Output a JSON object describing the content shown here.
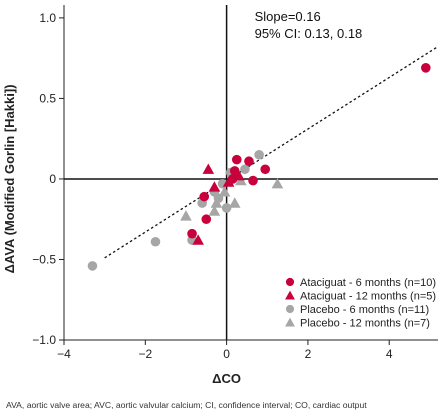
{
  "chart_data": {
    "type": "scatter",
    "xlabel": "ΔCO",
    "ylabel": "ΔAVA (Modified Gorlin [Hakki])",
    "xlim": [
      -4,
      5.2
    ],
    "ylim": [
      -1.0,
      1.08
    ],
    "xticks": [
      -4,
      -2,
      0,
      2,
      4
    ],
    "yticks": [
      -1.0,
      -0.5,
      0,
      0.5,
      1.0
    ],
    "xtick_labels": [
      "−4",
      "−2",
      "0",
      "2",
      "4"
    ],
    "ytick_labels": [
      "−1.0",
      "−0.5",
      "0",
      "0.5",
      "1.0"
    ],
    "grid": false,
    "legend_position": "bottom-right",
    "annotations": [
      "Slope=0.16",
      "95% CI: 0.13, 0.18"
    ],
    "regression_line": {
      "style": "dotted",
      "slope": 0.16,
      "intercept": -0.01,
      "x_range": [
        -3.0,
        5.2
      ]
    },
    "series": [
      {
        "name": "Ataciguat - 6 months (n=10)",
        "marker": "circle",
        "color": "#c8003c",
        "points": [
          {
            "x": 4.9,
            "y": 0.69
          },
          {
            "x": 0.25,
            "y": 0.12
          },
          {
            "x": 0.55,
            "y": 0.11
          },
          {
            "x": 0.95,
            "y": 0.06
          },
          {
            "x": 0.2,
            "y": 0.05
          },
          {
            "x": 0.65,
            "y": -0.01
          },
          {
            "x": 0.15,
            "y": 0.0
          },
          {
            "x": -0.55,
            "y": -0.11
          },
          {
            "x": -0.5,
            "y": -0.25
          },
          {
            "x": -0.85,
            "y": -0.34
          }
        ]
      },
      {
        "name": "Ataciguat - 12 months (n=5)",
        "marker": "triangle",
        "color": "#c8003c",
        "points": [
          {
            "x": -0.45,
            "y": 0.06
          },
          {
            "x": 0.3,
            "y": 0.02
          },
          {
            "x": 0.05,
            "y": -0.02
          },
          {
            "x": -0.3,
            "y": -0.05
          },
          {
            "x": -0.7,
            "y": -0.38
          }
        ]
      },
      {
        "name": "Placebo - 6 months (n=11)",
        "marker": "circle",
        "color": "#a6a6a6",
        "points": [
          {
            "x": 0.8,
            "y": 0.15
          },
          {
            "x": 0.45,
            "y": 0.06
          },
          {
            "x": 0.1,
            "y": 0.04
          },
          {
            "x": -0.1,
            "y": -0.03
          },
          {
            "x": -0.3,
            "y": -0.08
          },
          {
            "x": -0.2,
            "y": -0.12
          },
          {
            "x": -0.6,
            "y": -0.15
          },
          {
            "x": 0.0,
            "y": -0.18
          },
          {
            "x": -0.85,
            "y": -0.38
          },
          {
            "x": -1.75,
            "y": -0.39
          },
          {
            "x": -3.3,
            "y": -0.54
          }
        ]
      },
      {
        "name": "Placebo - 12 months (n=7)",
        "marker": "triangle",
        "color": "#a6a6a6",
        "points": [
          {
            "x": 1.25,
            "y": -0.03
          },
          {
            "x": 0.35,
            "y": -0.01
          },
          {
            "x": -0.05,
            "y": -0.08
          },
          {
            "x": 0.2,
            "y": -0.15
          },
          {
            "x": -0.25,
            "y": -0.15
          },
          {
            "x": -0.3,
            "y": -0.2
          },
          {
            "x": -1.0,
            "y": -0.23
          }
        ]
      }
    ]
  },
  "footnote": "AVA, aortic valve area; AVC, aortic valvular calcium; CI, confidence interval; CO, cardiac output"
}
